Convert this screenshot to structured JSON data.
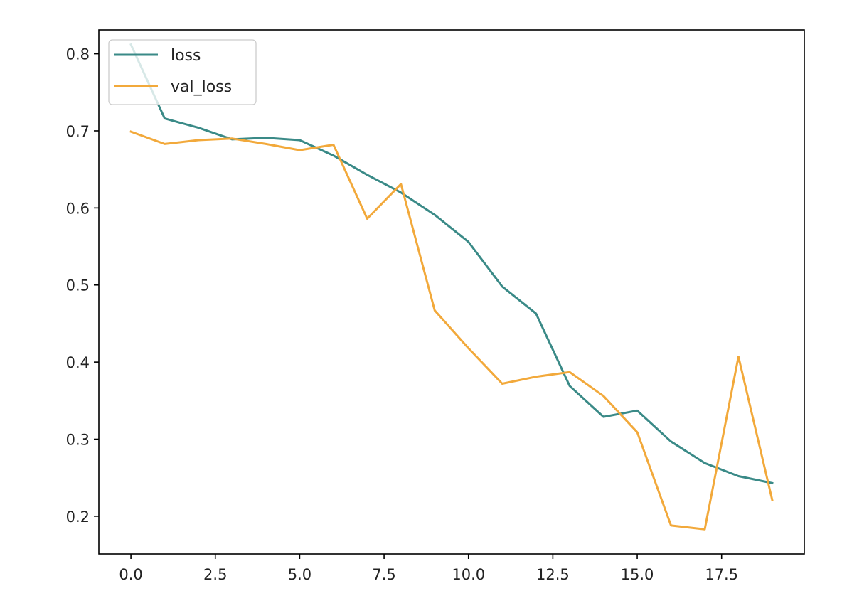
{
  "chart_data": {
    "type": "line",
    "title": "",
    "xlabel": "",
    "ylabel": "",
    "xlim": [
      -0.95,
      19.95
    ],
    "ylim": [
      0.151,
      0.831
    ],
    "grid": false,
    "legend": "upper-left",
    "x": [
      0,
      1,
      2,
      3,
      4,
      5,
      6,
      7,
      8,
      9,
      10,
      11,
      12,
      13,
      14,
      15,
      16,
      17,
      18,
      19
    ],
    "series": [
      {
        "name": "loss",
        "color": "#3a8a87",
        "values": [
          0.812,
          0.716,
          0.704,
          0.689,
          0.691,
          0.688,
          0.668,
          0.643,
          0.62,
          0.591,
          0.556,
          0.498,
          0.463,
          0.369,
          0.329,
          0.337,
          0.297,
          0.269,
          0.252,
          0.243
        ]
      },
      {
        "name": "val_loss",
        "color": "#f2a93b",
        "values": [
          0.699,
          0.683,
          0.688,
          0.69,
          0.683,
          0.675,
          0.682,
          0.586,
          0.631,
          0.467,
          0.418,
          0.372,
          0.381,
          0.387,
          0.356,
          0.309,
          0.188,
          0.183,
          0.407,
          0.221
        ]
      }
    ],
    "xticks": [
      0,
      2.5,
      5,
      7.5,
      10,
      12.5,
      15,
      17.5
    ],
    "xtick_labels": [
      "0.0",
      "2.5",
      "5.0",
      "7.5",
      "10.0",
      "12.5",
      "15.0",
      "17.5"
    ],
    "yticks": [
      0.2,
      0.3,
      0.4,
      0.5,
      0.6,
      0.7,
      0.8
    ],
    "ytick_labels": [
      "0.2",
      "0.3",
      "0.4",
      "0.5",
      "0.6",
      "0.7",
      "0.8"
    ]
  }
}
